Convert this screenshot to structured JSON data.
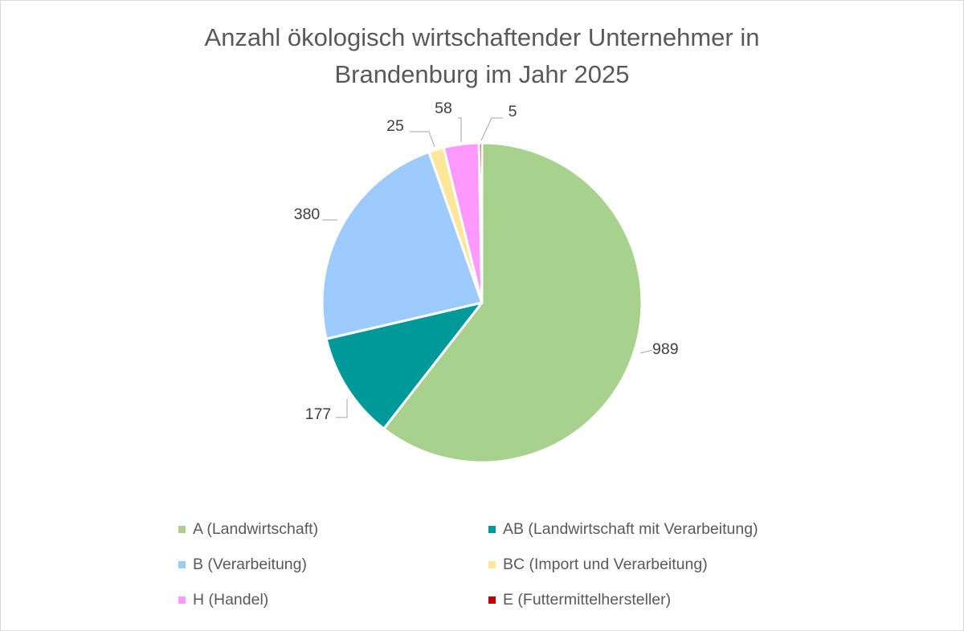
{
  "chart_data": {
    "type": "pie",
    "title_lines": [
      "Anzahl ökologisch wirtschaftender Unternehmer in",
      "Brandenburg im Jahr 2025"
    ],
    "start_angle_deg": 0,
    "direction": "clockwise",
    "slices": [
      {
        "label": "A (Landwirtschaft)",
        "value": 989,
        "color": "#a9d18e"
      },
      {
        "label": "AB (Landwirtschaft mit Verarbeitung)",
        "value": 177,
        "color": "#009999"
      },
      {
        "label": "B (Verarbeitung)",
        "value": 380,
        "color": "#9dcbff"
      },
      {
        "label": "BC (Import und Verarbeitung)",
        "value": 25,
        "color": "#ffe699"
      },
      {
        "label": "H (Handel)",
        "value": 58,
        "color": "#ff99ff"
      },
      {
        "label": "E (Futtermittelhersteller)",
        "value": 5,
        "color": "#c00000"
      }
    ],
    "data_labels": [
      "989",
      "177",
      "380",
      "25",
      "58",
      "5"
    ],
    "legend": {
      "position": "bottom",
      "items": [
        {
          "label": "A (Landwirtschaft)",
          "color": "#a9d18e"
        },
        {
          "label": "AB (Landwirtschaft mit Verarbeitung)",
          "color": "#009999"
        },
        {
          "label": "B (Verarbeitung)",
          "color": "#9dcbff"
        },
        {
          "label": "BC (Import und Verarbeitung)",
          "color": "#ffe699"
        },
        {
          "label": "H (Handel)",
          "color": "#ff99ff"
        },
        {
          "label": "E (Futtermittelhersteller)",
          "color": "#c00000"
        }
      ]
    }
  }
}
